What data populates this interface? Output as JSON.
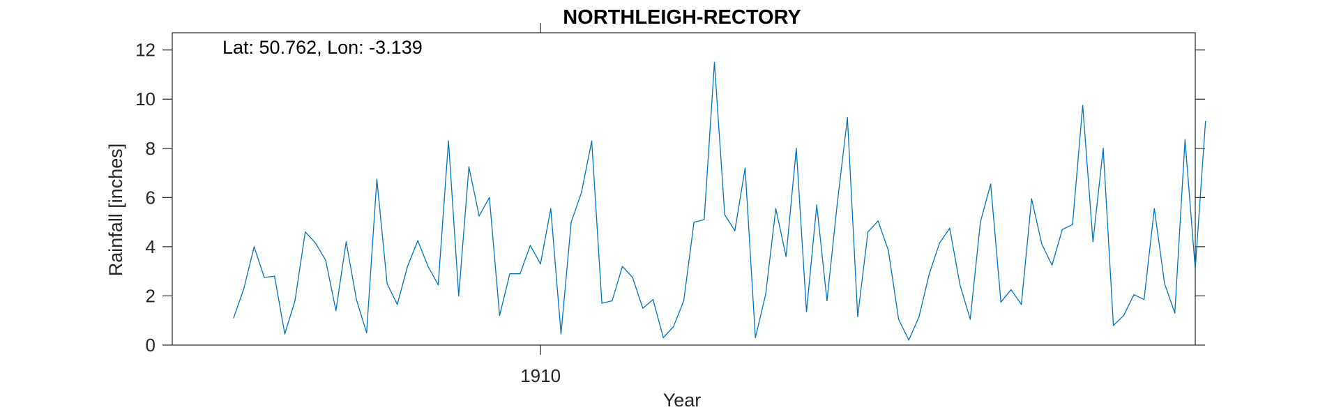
{
  "chart_data": {
    "type": "line",
    "title": "NORTHLEIGH-RECTORY",
    "xlabel": "Year",
    "ylabel": "Rainfall [inches]",
    "annotation": "Lat: 50.762, Lon: -3.139",
    "xlim": [
      1901.0,
      1926.0
    ],
    "ylim": [
      0,
      12.7
    ],
    "xticks": [
      1910
    ],
    "xtick_labels": [
      "1910"
    ],
    "yticks": [
      0,
      2,
      4,
      6,
      8,
      10,
      12
    ],
    "ytick_labels": [
      "0",
      "2",
      "4",
      "6",
      "8",
      "10",
      "12"
    ],
    "grid": false,
    "legend": "none",
    "series": [
      {
        "color": "#0072BD",
        "x_start": 1902.5,
        "x_step": 0.25,
        "values": [
          1.1,
          2.3,
          4.0,
          2.75,
          2.8,
          0.45,
          1.8,
          4.6,
          4.15,
          3.45,
          1.4,
          4.2,
          1.85,
          0.5,
          6.75,
          2.5,
          1.65,
          3.2,
          4.25,
          3.2,
          2.45,
          8.3,
          2.0,
          7.25,
          5.25,
          6.0,
          1.2,
          2.9,
          2.9,
          4.05,
          3.3,
          5.55,
          0.45,
          5.0,
          6.2,
          8.3,
          1.7,
          1.8,
          3.2,
          2.75,
          1.5,
          1.85,
          0.3,
          0.75,
          1.8,
          5.0,
          5.1,
          11.5,
          5.3,
          4.65,
          7.2,
          0.3,
          2.05,
          5.55,
          3.6,
          8.0,
          1.35,
          5.7,
          1.8,
          5.75,
          9.25,
          1.15,
          4.6,
          5.05,
          3.85,
          1.05,
          0.2,
          1.15,
          2.9,
          4.15,
          4.75,
          2.45,
          1.05,
          5.0,
          6.55,
          1.75,
          2.25,
          1.65,
          5.95,
          4.1,
          3.25,
          4.7,
          4.9,
          9.75,
          4.2,
          8.0,
          0.8,
          1.2,
          2.05,
          1.85,
          5.55,
          2.5,
          1.3,
          8.35,
          3.1,
          9.1
        ]
      }
    ]
  }
}
